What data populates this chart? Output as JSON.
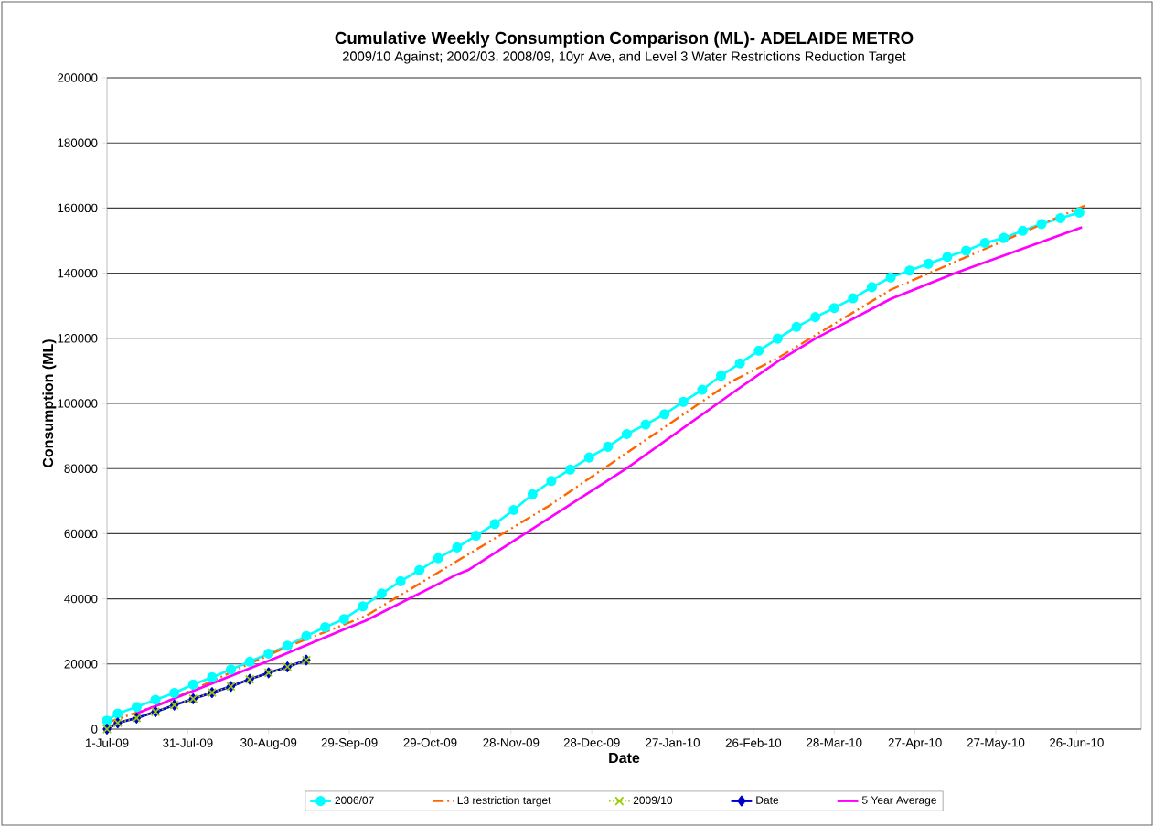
{
  "chart_data": {
    "type": "line",
    "title": "Cumulative Weekly Consumption Comparison (ML)- ADELAIDE METRO",
    "subtitle": "2009/10 Against; 2002/03, 2008/09, 10yr Ave, and Level 3 Water Restrictions Reduction Target",
    "xlabel": "Date",
    "ylabel": "Consumption (ML)",
    "xlim": [
      "2009-07-01",
      "2010-07-20"
    ],
    "xticks": [
      {
        "value": "2009-07-01",
        "label": "1-Jul-09"
      },
      {
        "value": "2009-07-31",
        "label": "31-Jul-09"
      },
      {
        "value": "2009-08-30",
        "label": "30-Aug-09"
      },
      {
        "value": "2009-09-29",
        "label": "29-Sep-09"
      },
      {
        "value": "2009-10-29",
        "label": "29-Oct-09"
      },
      {
        "value": "2009-11-28",
        "label": "28-Nov-09"
      },
      {
        "value": "2009-12-28",
        "label": "28-Dec-09"
      },
      {
        "value": "2010-01-27",
        "label": "27-Jan-10"
      },
      {
        "value": "2010-02-26",
        "label": "26-Feb-10"
      },
      {
        "value": "2010-03-28",
        "label": "28-Mar-10"
      },
      {
        "value": "2010-04-27",
        "label": "27-Apr-10"
      },
      {
        "value": "2010-05-27",
        "label": "27-May-10"
      },
      {
        "value": "2010-06-26",
        "label": "26-Jun-10"
      }
    ],
    "ylim": [
      0,
      200000
    ],
    "yticks": [
      0,
      20000,
      40000,
      60000,
      80000,
      100000,
      120000,
      140000,
      160000,
      180000,
      200000
    ],
    "grid": "y",
    "legend": "bottom",
    "series": [
      {
        "name": "2006/07",
        "color": "#00ffff",
        "marker": "circle",
        "line_style": "solid",
        "x": [
          "2009-07-01",
          "2009-07-05",
          "2009-07-12",
          "2009-07-19",
          "2009-07-26",
          "2009-08-02",
          "2009-08-09",
          "2009-08-16",
          "2009-08-23",
          "2009-08-30",
          "2009-09-06",
          "2009-09-13",
          "2009-09-20",
          "2009-09-27",
          "2009-10-04",
          "2009-10-11",
          "2009-10-18",
          "2009-10-25",
          "2009-11-01",
          "2009-11-08",
          "2009-11-15",
          "2009-11-22",
          "2009-11-29",
          "2009-12-06",
          "2009-12-13",
          "2009-12-20",
          "2009-12-27",
          "2010-01-03",
          "2010-01-10",
          "2010-01-17",
          "2010-01-24",
          "2010-01-31",
          "2010-02-07",
          "2010-02-14",
          "2010-02-21",
          "2010-02-28",
          "2010-03-07",
          "2010-03-14",
          "2010-03-21",
          "2010-03-28",
          "2010-04-04",
          "2010-04-11",
          "2010-04-18",
          "2010-04-25",
          "2010-05-02",
          "2010-05-09",
          "2010-05-16",
          "2010-05-23",
          "2010-05-30",
          "2010-06-06",
          "2010-06-13",
          "2010-06-20",
          "2010-06-27"
        ],
        "values": [
          2600,
          4800,
          6800,
          9000,
          11100,
          13700,
          15900,
          18300,
          20700,
          23200,
          25600,
          28600,
          31300,
          33800,
          37700,
          41600,
          45400,
          48800,
          52500,
          55800,
          59400,
          63000,
          67300,
          72100,
          76200,
          79700,
          83400,
          86700,
          90600,
          93500,
          96700,
          100500,
          104200,
          108500,
          112300,
          116200,
          119900,
          123500,
          126500,
          129300,
          132300,
          135700,
          138700,
          140800,
          142900,
          145000,
          146900,
          149300,
          150800,
          153000,
          155100,
          156900,
          158600
        ]
      },
      {
        "name": "L3 restriction target",
        "color": "#ff6600",
        "marker": "none",
        "line_style": "dashdot",
        "x": [
          "2009-07-01",
          "2009-07-21",
          "2009-09-05",
          "2009-10-05",
          "2009-12-12",
          "2010-02-18",
          "2010-03-07",
          "2010-04-18",
          "2010-06-29"
        ],
        "values": [
          2000,
          7600,
          25000,
          34700,
          68500,
          106800,
          113900,
          134900,
          160700
        ]
      },
      {
        "name": "2009/10",
        "color": "#99cc00",
        "marker": "cross",
        "line_style": "dotted",
        "x": [
          "2009-07-01",
          "2009-07-05",
          "2009-07-12",
          "2009-07-19",
          "2009-07-26",
          "2009-08-02",
          "2009-08-09",
          "2009-08-16",
          "2009-08-23",
          "2009-08-30",
          "2009-09-06",
          "2009-09-13"
        ],
        "values": [
          0,
          1900,
          3400,
          5300,
          7400,
          9300,
          11200,
          13100,
          15300,
          17300,
          19100,
          21200
        ]
      },
      {
        "name": "Date",
        "color": "#0000cc",
        "marker": "diamond",
        "line_style": "solid",
        "x": [
          "2009-07-01",
          "2009-07-05",
          "2009-07-12",
          "2009-07-19",
          "2009-07-26",
          "2009-08-02",
          "2009-08-09",
          "2009-08-16",
          "2009-08-23",
          "2009-08-30",
          "2009-09-06",
          "2009-09-13"
        ],
        "values": [
          0,
          1900,
          3400,
          5300,
          7400,
          9300,
          11200,
          13100,
          15300,
          17300,
          19100,
          21200
        ]
      },
      {
        "name": "5 Year Average",
        "color": "#ff00ff",
        "marker": "none",
        "line_style": "solid",
        "x": [
          "2009-07-12",
          "2009-09-01",
          "2009-09-27",
          "2009-10-05",
          "2009-11-08",
          "2009-11-12",
          "2010-01-10",
          "2010-02-18",
          "2010-03-07",
          "2010-03-21",
          "2010-04-18",
          "2010-05-12",
          "2010-06-28"
        ],
        "values": [
          4800,
          21600,
          30600,
          33300,
          47500,
          48800,
          80100,
          103100,
          112900,
          119900,
          132100,
          140000,
          154100
        ]
      }
    ]
  }
}
